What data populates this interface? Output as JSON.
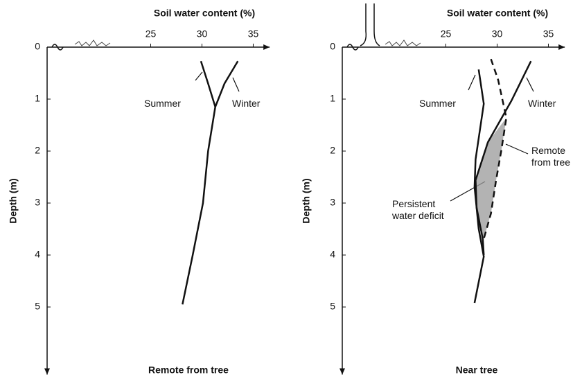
{
  "chart_data": [
    {
      "type": "line",
      "title": "Remote from tree",
      "x_label": "Soil water content (%)",
      "y_label": "Depth (m)",
      "xlim": [
        14.9,
        36.6
      ],
      "ylim": [
        0,
        6.3
      ],
      "xticks": [
        25,
        30,
        35
      ],
      "yticks": [
        0,
        1,
        2,
        3,
        4,
        5
      ],
      "series": [
        {
          "name": "Summer",
          "color": "#111111",
          "x": [
            29.9,
            30.6,
            31.3,
            30.6,
            30.1,
            29.1,
            28.1
          ],
          "values": [
            0.27,
            0.7,
            1.15,
            2,
            3,
            4,
            4.95
          ]
        },
        {
          "name": "Winter",
          "color": "#111111",
          "x": [
            33.5,
            32.2,
            31.3
          ],
          "values": [
            0.27,
            0.7,
            1.15
          ]
        }
      ]
    },
    {
      "type": "line",
      "title": "Near tree",
      "x_label": "Soil water content (%)",
      "y_label": "Depth (m)",
      "xlim": [
        14.9,
        36.6
      ],
      "ylim": [
        0,
        6.3
      ],
      "xticks": [
        25,
        30,
        35
      ],
      "yticks": [
        0,
        1,
        2,
        3,
        4,
        5
      ],
      "series": [
        {
          "name": "Summer",
          "color": "#111111",
          "x": [
            28.2,
            28.7,
            27.9,
            27.8,
            28.2,
            28.7,
            27.8
          ],
          "values": [
            0.43,
            1.09,
            2.16,
            2.69,
            3.49,
            4.03,
            4.92
          ]
        },
        {
          "name": "Winter",
          "color": "#111111",
          "x": [
            33.3,
            31.4,
            29.1,
            27.9,
            28.0,
            28.6,
            28.7
          ],
          "values": [
            0.27,
            1.03,
            1.83,
            2.56,
            3.09,
            3.69,
            4.0
          ]
        },
        {
          "name": "Remote from tree",
          "color": "#111111",
          "dashed": true,
          "x": [
            29.4,
            30.1,
            30.9,
            30.4,
            29.9,
            29.4,
            28.7
          ],
          "values": [
            0.23,
            0.63,
            1.36,
            2.0,
            2.56,
            3.2,
            3.69
          ]
        }
      ],
      "annotations": [
        "Persistent water deficit"
      ]
    }
  ]
}
